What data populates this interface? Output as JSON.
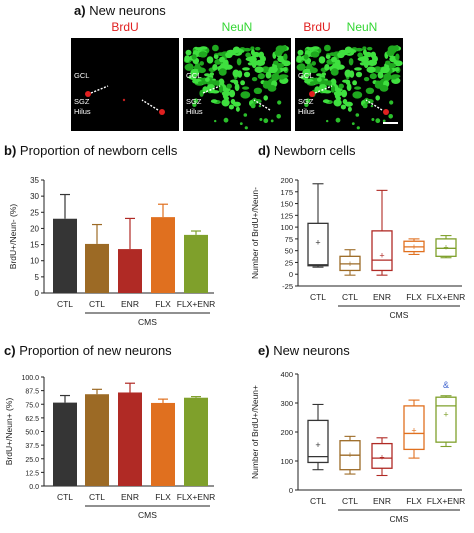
{
  "figure": {
    "panel_a": {
      "letter": "a)",
      "title": "New neurons",
      "channels": [
        "BrdU",
        "NeuN",
        "BrdU NeuN"
      ],
      "channel_labels": {
        "brdu": "BrdU",
        "neun": "NeuN",
        "merge_brdu": "BrdU",
        "merge_neun": "NeuN"
      },
      "region_labels": [
        "GCL",
        "SGZ",
        "Hilus"
      ],
      "colors": {
        "brdu": "#e02020",
        "neun": "#33d633",
        "background": "#000000"
      }
    },
    "panel_b": {
      "letter": "b)",
      "title": "Proportion of newborn cells"
    },
    "panel_c": {
      "letter": "c)",
      "title": "Proportion of new neurons"
    },
    "panel_d": {
      "letter": "d)",
      "title": "Newborn cells"
    },
    "panel_e": {
      "letter": "e)",
      "title": "New neurons"
    }
  },
  "group_colors": {
    "CTL": "#353535",
    "CMS CTL": "#9c6a25",
    "ENR": "#b02a25",
    "FLX": "#e0701f",
    "FLX+ENR": "#7fa02b"
  },
  "chart_data": [
    {
      "panel": "b",
      "type": "bar",
      "categories": [
        "CTL",
        "CTL",
        "ENR",
        "FLX",
        "FLX+ENR"
      ],
      "group_label": "CMS",
      "values": [
        23,
        15.2,
        13.6,
        23.5,
        18
      ],
      "errors": [
        7.5,
        6,
        9.5,
        4,
        1.2
      ],
      "ylabel": "BrdU+/Neun- (%)",
      "ylim": [
        0,
        35
      ],
      "yticks": [
        "0",
        "5",
        "10",
        "15",
        "20",
        "25",
        "30",
        "35"
      ]
    },
    {
      "panel": "c",
      "type": "bar",
      "categories": [
        "CTL",
        "CTL",
        "ENR",
        "FLX",
        "FLX+ENR"
      ],
      "group_label": "CMS",
      "values": [
        76.5,
        84.2,
        85.8,
        76.2,
        81
      ],
      "errors": [
        6.5,
        4.5,
        8.5,
        3.5,
        1
      ],
      "ylabel": "BrdU+/Neun+ (%)",
      "ylim": [
        0,
        100
      ],
      "yticks": [
        "0.0",
        "12.5",
        "25.0",
        "37.5",
        "50.0",
        "62.5",
        "75.0",
        "87.5",
        "100.0"
      ]
    },
    {
      "panel": "d",
      "type": "box",
      "categories": [
        "CTL",
        "CTL",
        "ENR",
        "FLX",
        "FLX+ENR"
      ],
      "group_label": "CMS",
      "boxes": [
        {
          "min": 15,
          "q1": 18,
          "median": 20,
          "q3": 108,
          "max": 192,
          "mean": 67
        },
        {
          "min": -2,
          "q1": 8,
          "median": 22,
          "q3": 38,
          "max": 52,
          "mean": 22
        },
        {
          "min": -2,
          "q1": 8,
          "median": 30,
          "q3": 92,
          "max": 178,
          "mean": 40
        },
        {
          "min": 42,
          "q1": 48,
          "median": 58,
          "q3": 70,
          "max": 75,
          "mean": 58
        },
        {
          "min": 35,
          "q1": 38,
          "median": 55,
          "q3": 75,
          "max": 82,
          "mean": 57
        }
      ],
      "ylabel": "Number of BrdU+/Neun-",
      "ylim": [
        -25,
        200
      ],
      "yticks": [
        "-25",
        "0",
        "25",
        "50",
        "75",
        "100",
        "125",
        "150",
        "175",
        "200"
      ]
    },
    {
      "panel": "e",
      "type": "box",
      "categories": [
        "CTL",
        "CTL",
        "ENR",
        "FLX",
        "FLX+ENR"
      ],
      "group_label": "CMS",
      "boxes": [
        {
          "min": 70,
          "q1": 95,
          "median": 115,
          "q3": 240,
          "max": 295,
          "mean": 155
        },
        {
          "min": 55,
          "q1": 70,
          "median": 120,
          "q3": 170,
          "max": 185,
          "mean": 120
        },
        {
          "min": 50,
          "q1": 75,
          "median": 110,
          "q3": 160,
          "max": 180,
          "mean": 112
        },
        {
          "min": 110,
          "q1": 140,
          "median": 195,
          "q3": 290,
          "max": 310,
          "mean": 205
        },
        {
          "min": 150,
          "q1": 165,
          "median": 290,
          "q3": 320,
          "max": 325,
          "mean": 260
        }
      ],
      "annotation": "&",
      "annotation_color": "#3a5fcd",
      "ylabel": "Number of BrdU+/Neun+",
      "ylim": [
        0,
        400
      ],
      "yticks": [
        "0",
        "100",
        "200",
        "300",
        "400"
      ]
    }
  ]
}
